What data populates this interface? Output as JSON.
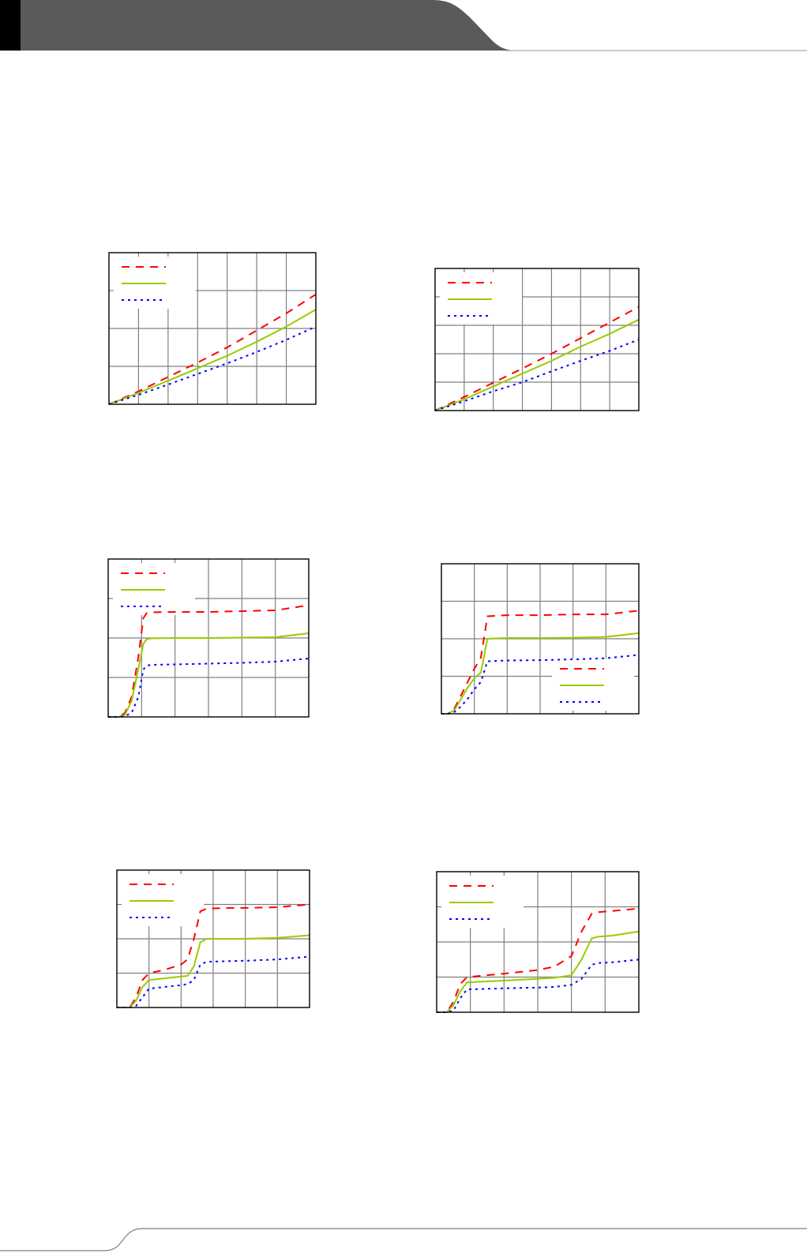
{
  "colors": {
    "header": "#5a5a5a",
    "header_edge": "#000000",
    "grid": "#808080",
    "frame": "#000000",
    "rule": "#999999"
  },
  "chart_data": [
    {
      "type": "line",
      "grid": true,
      "legend": "top-left",
      "xlim": [
        0,
        7
      ],
      "ylim": [
        0,
        4
      ],
      "series": [
        {
          "color": "#ff0000",
          "dash": "dash",
          "x": [
            0,
            1,
            2,
            3,
            4,
            5,
            6,
            7
          ],
          "y": [
            0,
            0.34,
            0.72,
            1.1,
            1.5,
            1.95,
            2.4,
            2.9
          ]
        },
        {
          "color": "#99cc00",
          "dash": "solid",
          "x": [
            0,
            1,
            2,
            3,
            4,
            5,
            6,
            7
          ],
          "y": [
            0,
            0.3,
            0.62,
            0.95,
            1.28,
            1.65,
            2.05,
            2.5
          ]
        },
        {
          "color": "#0000ff",
          "dash": "dot",
          "x": [
            0,
            1,
            2,
            3,
            4,
            5,
            6,
            7
          ],
          "y": [
            0,
            0.25,
            0.52,
            0.8,
            1.08,
            1.38,
            1.7,
            2.05
          ]
        }
      ]
    },
    {
      "type": "line",
      "grid": true,
      "legend": "top-left",
      "xlim": [
        0,
        7
      ],
      "ylim": [
        0,
        5
      ],
      "series": [
        {
          "color": "#ff0000",
          "dash": "dash",
          "x": [
            0,
            1,
            2,
            3,
            4,
            5,
            6,
            7
          ],
          "y": [
            0,
            0.48,
            0.98,
            1.48,
            2.0,
            2.55,
            3.1,
            3.65
          ]
        },
        {
          "color": "#99cc00",
          "dash": "solid",
          "x": [
            0,
            1,
            2,
            3,
            4,
            5,
            6,
            7
          ],
          "y": [
            0,
            0.4,
            0.85,
            1.3,
            1.75,
            2.25,
            2.7,
            3.2
          ]
        },
        {
          "color": "#0000ff",
          "dash": "dot",
          "x": [
            0,
            1,
            2,
            3,
            4,
            5,
            6,
            7
          ],
          "y": [
            0,
            0.33,
            0.68,
            1.0,
            1.38,
            1.75,
            2.1,
            2.5
          ]
        }
      ]
    },
    {
      "type": "line",
      "grid": true,
      "legend": "top-left",
      "xlim": [
        0,
        6
      ],
      "ylim": [
        0,
        4
      ],
      "series": [
        {
          "color": "#ff0000",
          "dash": "dash",
          "x": [
            0,
            0.15,
            0.3,
            0.5,
            0.7,
            0.9,
            1.05,
            1.15,
            1.3,
            2,
            3,
            4,
            5,
            6
          ],
          "y": [
            0,
            0,
            0,
            0.1,
            0.5,
            1.5,
            2.5,
            2.63,
            2.65,
            2.66,
            2.66,
            2.68,
            2.7,
            2.83
          ]
        },
        {
          "color": "#99cc00",
          "dash": "solid",
          "x": [
            0,
            0.15,
            0.3,
            0.5,
            0.7,
            0.9,
            1.05,
            1.15,
            1.3,
            2,
            3,
            4,
            5,
            6
          ],
          "y": [
            0,
            0,
            0,
            0.05,
            0.4,
            1.2,
            1.85,
            1.97,
            1.99,
            2,
            2,
            2.01,
            2.02,
            2.12
          ]
        },
        {
          "color": "#0000ff",
          "dash": "dot",
          "x": [
            0,
            0.15,
            0.3,
            0.5,
            0.7,
            0.9,
            1.05,
            1.15,
            1.3,
            2,
            3,
            4,
            5,
            6
          ],
          "y": [
            0,
            0,
            0,
            0.02,
            0.1,
            0.5,
            1.2,
            1.3,
            1.32,
            1.33,
            1.35,
            1.37,
            1.4,
            1.48
          ]
        }
      ]
    },
    {
      "type": "line",
      "grid": true,
      "legend": "lower-right",
      "xlim": [
        0,
        6
      ],
      "ylim": [
        0,
        4
      ],
      "series": [
        {
          "color": "#ff0000",
          "dash": "dash",
          "x": [
            0,
            0.2,
            0.4,
            0.6,
            0.8,
            1.0,
            1.2,
            1.4,
            2,
            3,
            4,
            5,
            6
          ],
          "y": [
            0,
            0,
            0.15,
            0.5,
            0.85,
            1.2,
            1.5,
            2.6,
            2.63,
            2.63,
            2.65,
            2.65,
            2.75
          ]
        },
        {
          "color": "#99cc00",
          "dash": "solid",
          "x": [
            0,
            0.2,
            0.4,
            0.6,
            0.8,
            1.0,
            1.2,
            1.4,
            2,
            3,
            4,
            5,
            6
          ],
          "y": [
            0,
            0,
            0.1,
            0.4,
            0.7,
            0.95,
            1.1,
            2.0,
            2.02,
            2.02,
            2.03,
            2.05,
            2.15
          ]
        },
        {
          "color": "#0000ff",
          "dash": "dot",
          "x": [
            0,
            0.2,
            0.4,
            0.6,
            0.8,
            1.0,
            1.2,
            1.4,
            2,
            3,
            4,
            5,
            6
          ],
          "y": [
            0,
            0,
            0.05,
            0.2,
            0.4,
            0.65,
            0.85,
            1.4,
            1.42,
            1.43,
            1.45,
            1.48,
            1.57
          ]
        }
      ]
    },
    {
      "type": "line",
      "grid": true,
      "legend": "top-left",
      "xlim": [
        0,
        6
      ],
      "ylim": [
        0,
        4
      ],
      "series": [
        {
          "color": "#ff0000",
          "dash": "dash",
          "x": [
            0,
            0.4,
            0.6,
            0.8,
            1.0,
            1.5,
            2.0,
            2.2,
            2.4,
            2.6,
            2.8,
            3.5,
            4,
            5,
            6
          ],
          "y": [
            0,
            0,
            0.3,
            0.8,
            1.0,
            1.1,
            1.25,
            1.4,
            2.0,
            2.8,
            2.88,
            2.9,
            2.9,
            2.92,
            3.0
          ]
        },
        {
          "color": "#99cc00",
          "dash": "solid",
          "x": [
            0,
            0.4,
            0.6,
            0.8,
            1.0,
            1.5,
            2.0,
            2.2,
            2.4,
            2.6,
            2.8,
            3.5,
            4,
            5,
            6
          ],
          "y": [
            0,
            0,
            0.2,
            0.6,
            0.8,
            0.85,
            0.9,
            0.92,
            1.2,
            1.9,
            2.0,
            2.0,
            2.0,
            2.03,
            2.1
          ]
        },
        {
          "color": "#0000ff",
          "dash": "dot",
          "x": [
            0,
            0.4,
            0.6,
            0.8,
            1.0,
            1.5,
            2.0,
            2.2,
            2.4,
            2.6,
            2.8,
            3.5,
            4,
            5,
            6
          ],
          "y": [
            0,
            0,
            0.05,
            0.3,
            0.55,
            0.6,
            0.65,
            0.68,
            0.8,
            1.25,
            1.33,
            1.35,
            1.36,
            1.4,
            1.48
          ]
        }
      ]
    },
    {
      "type": "line",
      "grid": true,
      "legend": "top-left",
      "xlim": [
        0,
        6
      ],
      "ylim": [
        0,
        4
      ],
      "series": [
        {
          "color": "#ff0000",
          "dash": "dash",
          "x": [
            0,
            0.3,
            0.5,
            0.7,
            0.9,
            2,
            3,
            3.5,
            4,
            4.3,
            4.6,
            4.8,
            5.2,
            6
          ],
          "y": [
            0,
            0,
            0.3,
            0.8,
            1.0,
            1.1,
            1.2,
            1.3,
            1.6,
            2.3,
            2.8,
            2.85,
            2.88,
            2.95
          ]
        },
        {
          "color": "#99cc00",
          "dash": "solid",
          "x": [
            0,
            0.3,
            0.5,
            0.7,
            0.9,
            2,
            3,
            3.5,
            4,
            4.3,
            4.6,
            4.8,
            5.2,
            6
          ],
          "y": [
            0,
            0,
            0.2,
            0.6,
            0.85,
            0.9,
            0.95,
            0.98,
            1.05,
            1.5,
            2.1,
            2.15,
            2.18,
            2.3
          ]
        },
        {
          "color": "#0000ff",
          "dash": "dot",
          "x": [
            0,
            0.3,
            0.5,
            0.7,
            0.9,
            2,
            3,
            3.5,
            4,
            4.3,
            4.6,
            4.8,
            5.2,
            6
          ],
          "y": [
            0,
            0,
            0.05,
            0.4,
            0.65,
            0.68,
            0.7,
            0.72,
            0.78,
            0.95,
            1.35,
            1.4,
            1.42,
            1.5
          ]
        }
      ]
    }
  ]
}
